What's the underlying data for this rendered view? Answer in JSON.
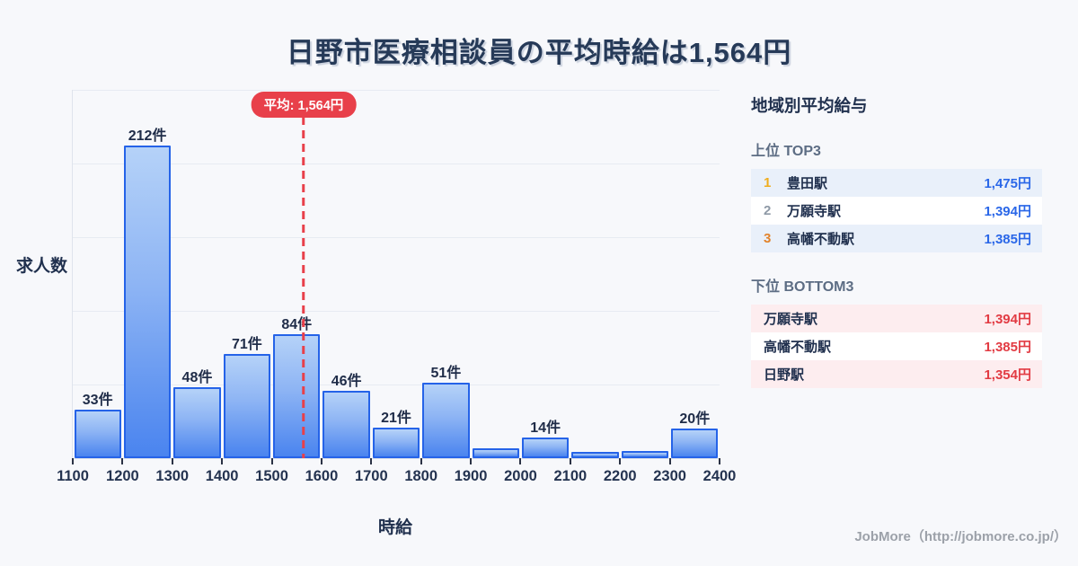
{
  "title": "日野市医療相談員の平均時給は1,564円",
  "chart_data": {
    "type": "bar",
    "title": "日野市医療相談員の平均時給は1,564円",
    "xlabel": "時給",
    "ylabel": "求人数",
    "bin_edges": [
      1100,
      1200,
      1300,
      1400,
      1500,
      1600,
      1700,
      1800,
      1900,
      2000,
      2100,
      2200,
      2300,
      2400
    ],
    "categories": [
      "1100-1200",
      "1200-1300",
      "1300-1400",
      "1400-1500",
      "1500-1600",
      "1600-1700",
      "1700-1800",
      "1800-1900",
      "1900-2000",
      "2000-2100",
      "2100-2200",
      "2200-2300",
      "2300-2400"
    ],
    "values": [
      33,
      212,
      48,
      71,
      84,
      46,
      21,
      51,
      7,
      14,
      4,
      5,
      20
    ],
    "bar_labels": [
      "33件",
      "212件",
      "48件",
      "71件",
      "84件",
      "46件",
      "21件",
      "51件",
      "",
      "14件",
      "",
      "",
      "20件"
    ],
    "xlim": [
      1100,
      2400
    ],
    "ylim": [
      0,
      250
    ],
    "grid_step": 50,
    "grid": true,
    "mean": {
      "value": 1564,
      "label": "平均: 1,564円"
    },
    "colors": {
      "bar_fill_top": "#b5d2f8",
      "bar_fill_bottom": "#4a84ef",
      "bar_border": "#2563e8",
      "mean_red": "#e8404a",
      "background": "#f7f8fb"
    }
  },
  "panel": {
    "title": "地域別平均給与",
    "top": {
      "heading": "上位 TOP3",
      "value_color": "#2a67e8",
      "rows": [
        {
          "rank": "1",
          "name": "豊田駅",
          "value": "1,475円"
        },
        {
          "rank": "2",
          "name": "万願寺駅",
          "value": "1,394円"
        },
        {
          "rank": "3",
          "name": "高幡不動駅",
          "value": "1,385円"
        }
      ]
    },
    "bottom": {
      "heading": "下位 BOTTOM3",
      "value_color": "#e23b43",
      "rows": [
        {
          "name": "万願寺駅",
          "value": "1,394円"
        },
        {
          "name": "高幡不動駅",
          "value": "1,385円"
        },
        {
          "name": "日野駅",
          "value": "1,354円"
        }
      ]
    }
  },
  "footer": {
    "credit": "JobMore（http://jobmore.co.jp/）"
  }
}
